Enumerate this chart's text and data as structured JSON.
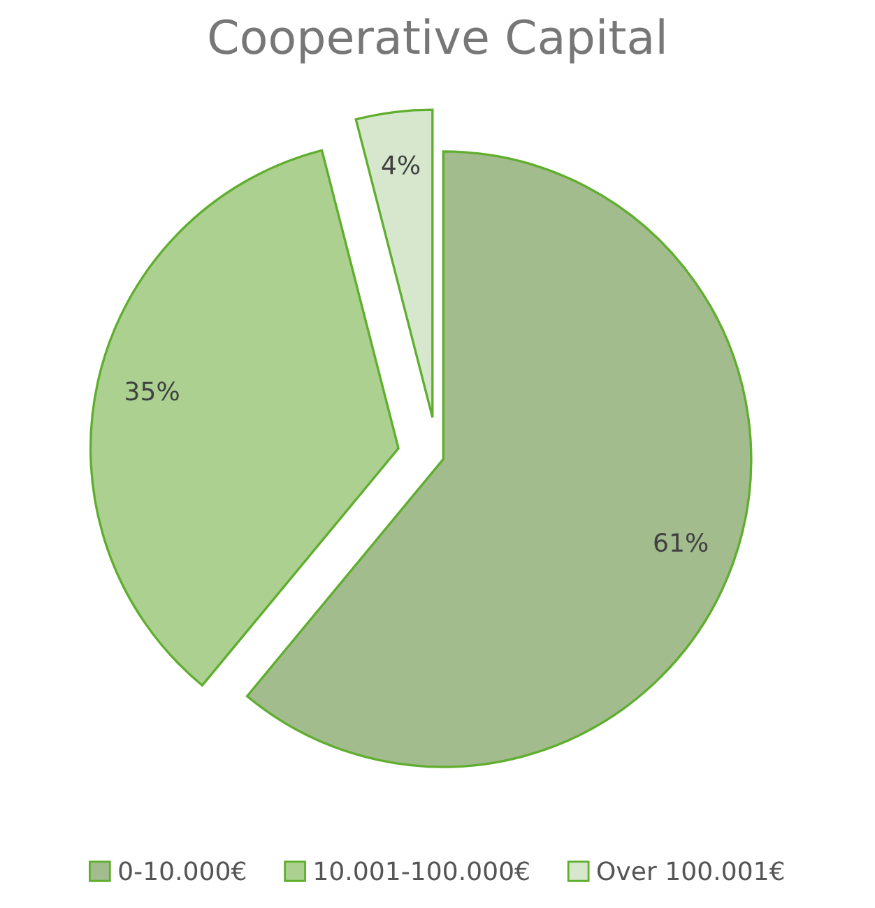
{
  "chart_data": {
    "type": "pie",
    "title": "Cooperative Capital",
    "categories": [
      "0-10.000€",
      "10.001-100.000€",
      "Over 100.001€"
    ],
    "values": [
      61,
      35,
      4
    ],
    "colors": [
      "#a2bc8e",
      "#abd08f",
      "#d6e7cd"
    ],
    "value_labels": [
      "61%",
      "35%",
      "4%"
    ],
    "legend": "bottom"
  }
}
